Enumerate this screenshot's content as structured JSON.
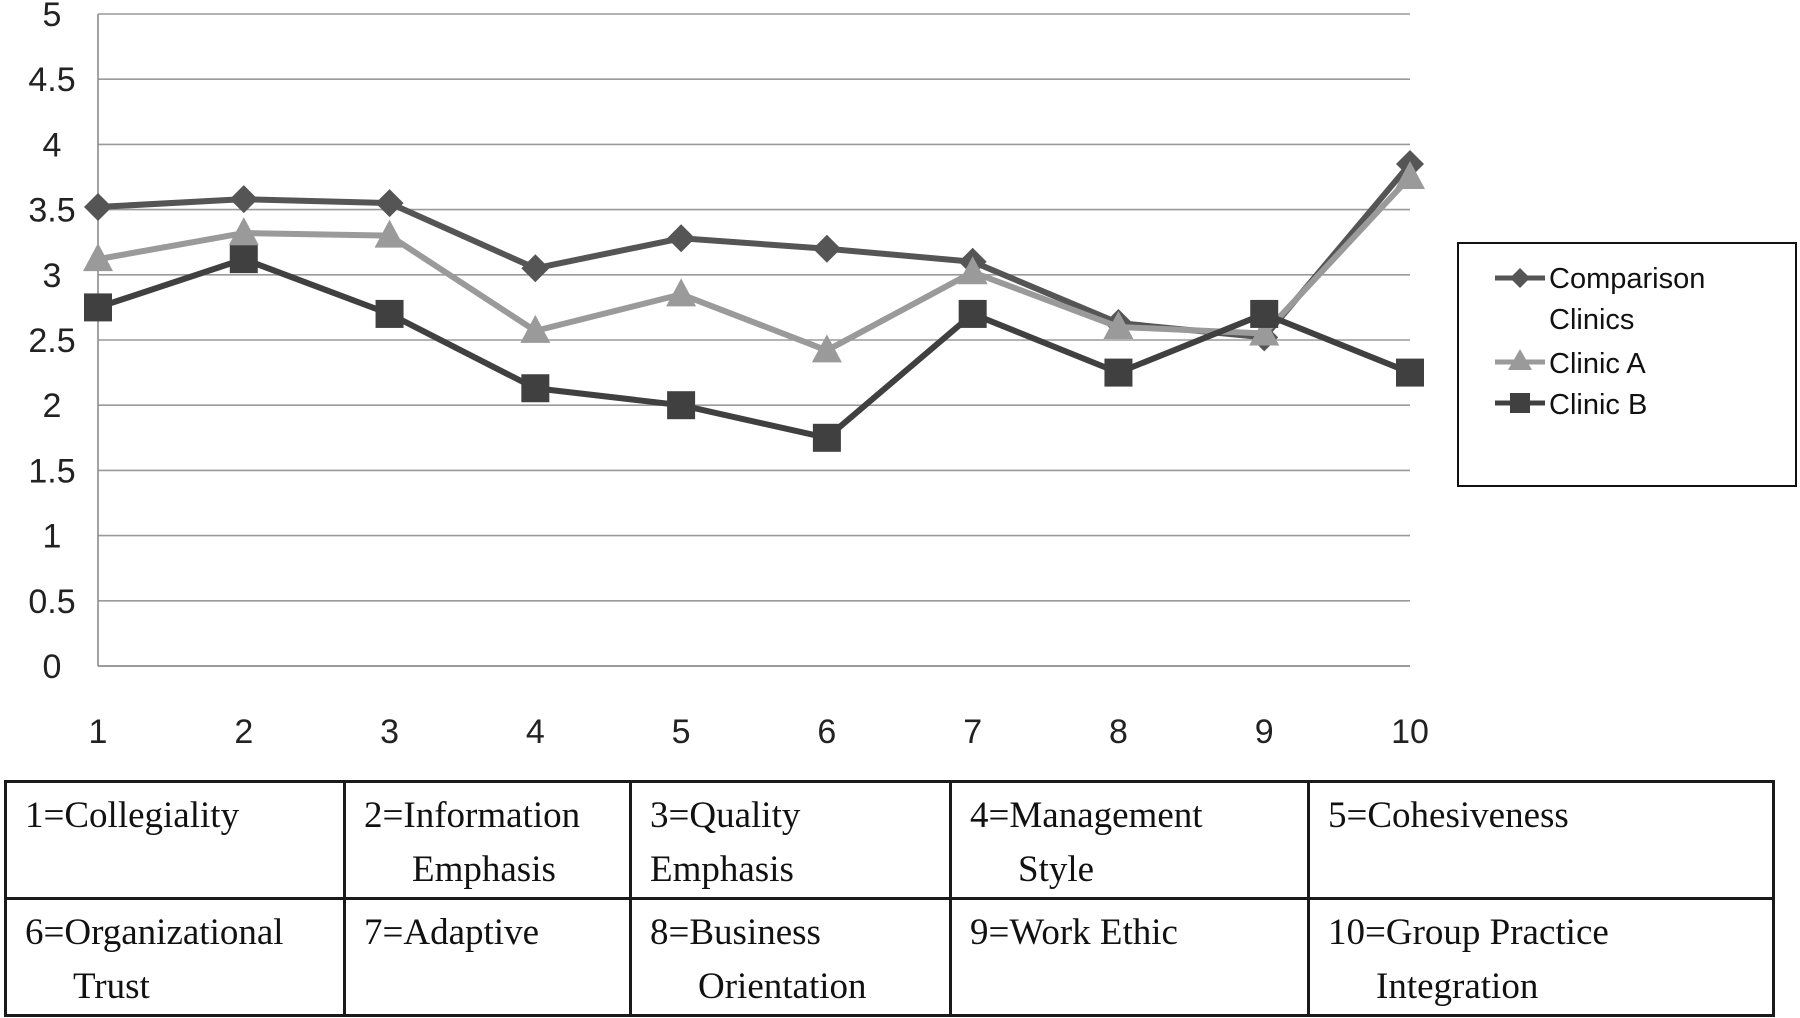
{
  "chart_data": {
    "type": "line",
    "x": [
      1,
      2,
      3,
      4,
      5,
      6,
      7,
      8,
      9,
      10
    ],
    "ylim": [
      0,
      5
    ],
    "yticks": [
      "0",
      "0.5",
      "1",
      "1.5",
      "2",
      "2.5",
      "3",
      "3.5",
      "4",
      "4.5",
      "5"
    ],
    "xticks": [
      "1",
      "2",
      "3",
      "4",
      "5",
      "6",
      "7",
      "8",
      "9",
      "10"
    ],
    "grid": true,
    "legend_position": "right",
    "series": [
      {
        "name": "Comparison Clinics",
        "marker": "diamond",
        "color": "#555555",
        "values": [
          3.52,
          3.58,
          3.55,
          3.05,
          3.28,
          3.2,
          3.1,
          2.63,
          2.52,
          3.85
        ]
      },
      {
        "name": "Clinic A",
        "marker": "triangle",
        "color": "#9a9a9a",
        "values": [
          3.12,
          3.32,
          3.3,
          2.57,
          2.85,
          2.42,
          3.02,
          2.6,
          2.55,
          3.75
        ]
      },
      {
        "name": "Clinic B",
        "marker": "square",
        "color": "#404040",
        "values": [
          2.75,
          3.12,
          2.7,
          2.13,
          2.0,
          1.75,
          2.7,
          2.25,
          2.7,
          2.25
        ]
      }
    ]
  },
  "legend": {
    "items": [
      {
        "line1": "Comparison",
        "line2": "Clinics"
      },
      {
        "line1": "Clinic A",
        "line2": ""
      },
      {
        "line1": "Clinic B",
        "line2": ""
      }
    ]
  },
  "key_table": {
    "rows": [
      [
        {
          "line1": "1=Collegiality",
          "line2": ""
        },
        {
          "line1": "2=Information",
          "line2": "Emphasis"
        },
        {
          "line1": "3=Quality",
          "line2": "Emphasis"
        },
        {
          "line1": "4=Management",
          "line2": "Style"
        },
        {
          "line1": "5=Cohesiveness",
          "line2": ""
        }
      ],
      [
        {
          "line1": "6=Organizational",
          "line2": "Trust"
        },
        {
          "line1": "7=Adaptive",
          "line2": ""
        },
        {
          "line1": "8=Business",
          "line2": "Orientation"
        },
        {
          "line1": "9=Work Ethic",
          "line2": ""
        },
        {
          "line1": "10=Group Practice",
          "line2": "Integration"
        }
      ]
    ]
  }
}
